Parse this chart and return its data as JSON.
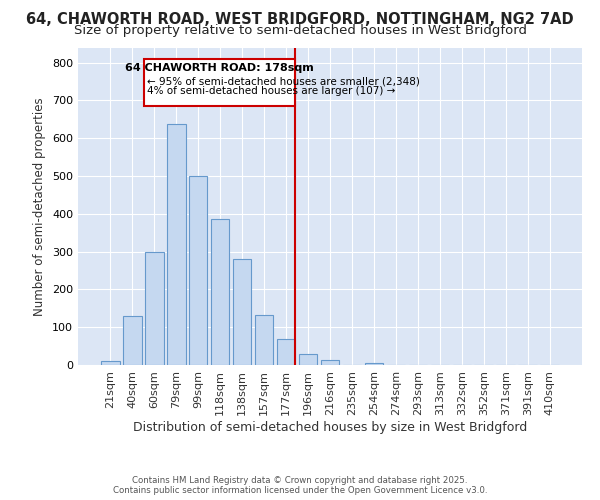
{
  "title": "64, CHAWORTH ROAD, WEST BRIDGFORD, NOTTINGHAM, NG2 7AD",
  "subtitle": "Size of property relative to semi-detached houses in West Bridgford",
  "xlabel": "Distribution of semi-detached houses by size in West Bridgford",
  "ylabel": "Number of semi-detached properties",
  "footnote1": "Contains HM Land Registry data © Crown copyright and database right 2025.",
  "footnote2": "Contains public sector information licensed under the Open Government Licence v3.0.",
  "categories": [
    "21sqm",
    "40sqm",
    "60sqm",
    "79sqm",
    "99sqm",
    "118sqm",
    "138sqm",
    "157sqm",
    "177sqm",
    "196sqm",
    "216sqm",
    "235sqm",
    "254sqm",
    "274sqm",
    "293sqm",
    "313sqm",
    "332sqm",
    "352sqm",
    "371sqm",
    "391sqm",
    "410sqm"
  ],
  "bar_heights": [
    10,
    130,
    300,
    638,
    500,
    385,
    280,
    132,
    70,
    28,
    13,
    0,
    5,
    0,
    0,
    0,
    0,
    0,
    0,
    0,
    0
  ],
  "bar_color": "#c5d8f0",
  "bar_edge_color": "#6699cc",
  "vline_color": "#cc0000",
  "annotation_title": "64 CHAWORTH ROAD: 178sqm",
  "annotation_line1": "← 95% of semi-detached houses are smaller (2,348)",
  "annotation_line2": "4% of semi-detached houses are larger (107) →",
  "annotation_box_color": "#cc0000",
  "ylim": [
    0,
    840
  ],
  "yticks": [
    0,
    100,
    200,
    300,
    400,
    500,
    600,
    700,
    800
  ],
  "bg_color": "#ffffff",
  "plot_bg_color": "#dce6f5",
  "grid_color": "#ffffff",
  "title_fontsize": 10.5,
  "subtitle_fontsize": 9.5,
  "footnote_color": "#555555"
}
